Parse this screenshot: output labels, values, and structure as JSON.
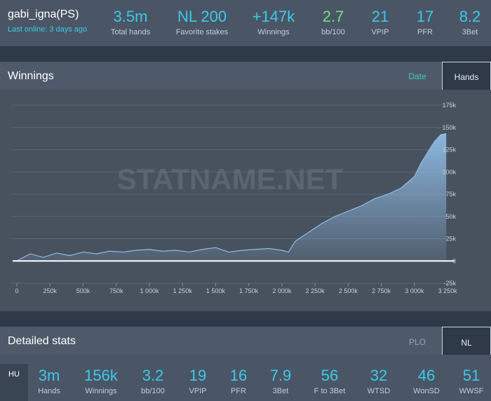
{
  "player": {
    "name": "gabi_igna(PS)",
    "last_online": "Last online: 3 days ago"
  },
  "header_stats": [
    {
      "value": "3.5m",
      "label": "Total hands",
      "color": "#3ec8e8"
    },
    {
      "value": "NL 200",
      "label": "Favorite stakes",
      "color": "#3ec8e8"
    },
    {
      "value": "+147k",
      "label": "Winnings",
      "color": "#3ec8e8"
    },
    {
      "value": "2.7",
      "label": "bb/100",
      "color": "#6ee27a"
    },
    {
      "value": "21",
      "label": "VPIP",
      "color": "#3ec8e8"
    },
    {
      "value": "17",
      "label": "PFR",
      "color": "#3ec8e8"
    },
    {
      "value": "8.2",
      "label": "3Bet",
      "color": "#3ec8e8"
    }
  ],
  "winnings": {
    "title": "Winnings",
    "tabs": {
      "date": "Date",
      "hands": "Hands"
    },
    "active_tab": "Hands",
    "watermark": "STATNAME.NET"
  },
  "chart_data": {
    "type": "area",
    "xlabel": "",
    "ylabel": "",
    "x_ticks": [
      "0",
      "250k",
      "500k",
      "750k",
      "1 000k",
      "1 250k",
      "1 500k",
      "1 750k",
      "2 000k",
      "2 250k",
      "2 500k",
      "2 750k",
      "3 000k",
      "3 250k"
    ],
    "y_ticks": [
      "175k",
      "150k",
      "125k",
      "100k",
      "75k",
      "50k",
      "25k",
      "0",
      "-25k"
    ],
    "xlim": [
      0,
      3260000
    ],
    "ylim": [
      -25000,
      175000
    ],
    "grid": true,
    "color": "#8fbce6",
    "x": [
      0,
      100000,
      200000,
      300000,
      400000,
      500000,
      600000,
      700000,
      800000,
      900000,
      1000000,
      1100000,
      1200000,
      1300000,
      1400000,
      1500000,
      1600000,
      1700000,
      1800000,
      1900000,
      2000000,
      2050000,
      2100000,
      2200000,
      2300000,
      2400000,
      2500000,
      2600000,
      2700000,
      2800000,
      2900000,
      3000000,
      3050000,
      3100000,
      3150000,
      3200000,
      3240000
    ],
    "values": [
      0,
      8000,
      4000,
      9000,
      6000,
      10000,
      8000,
      11000,
      10000,
      12000,
      13000,
      11000,
      12000,
      10000,
      13000,
      15000,
      10000,
      12000,
      13000,
      14000,
      12000,
      10000,
      22000,
      32000,
      42000,
      50000,
      56000,
      62000,
      70000,
      75000,
      82000,
      95000,
      110000,
      122000,
      134000,
      142000,
      143000
    ]
  },
  "detailed": {
    "title": "Detailed stats",
    "tabs": {
      "plo": "PLO",
      "nl": "NL"
    },
    "active_tab": "NL",
    "hu_label": "HU",
    "stats": [
      {
        "value": "3m",
        "label": "Hands"
      },
      {
        "value": "156k",
        "label": "Winnings"
      },
      {
        "value": "3.2",
        "label": "bb/100"
      },
      {
        "value": "19",
        "label": "VPIP"
      },
      {
        "value": "16",
        "label": "PFR"
      },
      {
        "value": "7.9",
        "label": "3Bet"
      },
      {
        "value": "56",
        "label": "F to 3Bet"
      },
      {
        "value": "32",
        "label": "WTSD"
      },
      {
        "value": "46",
        "label": "WonSD"
      },
      {
        "value": "51",
        "label": "WWSF"
      }
    ]
  }
}
